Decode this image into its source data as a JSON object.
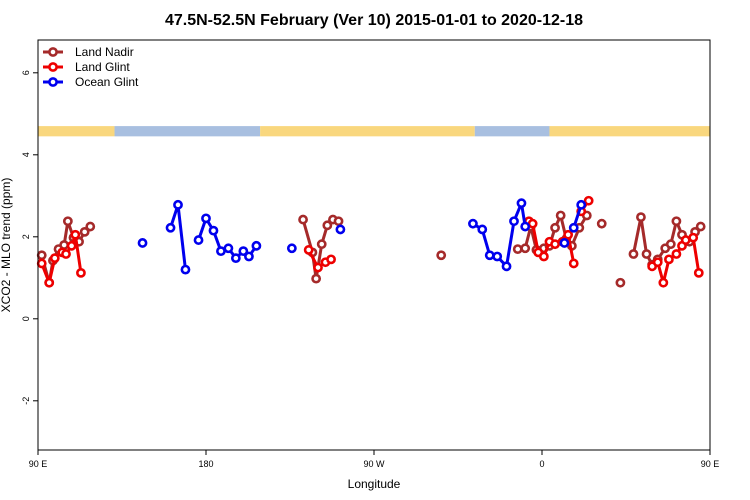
{
  "chart_data": {
    "type": "line",
    "title": "47.5N-52.5N February (Ver 10)   2015-01-01 to 2020-12-18",
    "xlabel": "Longitude",
    "ylabel": "XCO2 - MLO trend (ppm)",
    "xlim": [
      90,
      450
    ],
    "ylim": [
      -3.2,
      6.8
    ],
    "x_ticks": [
      {
        "value": 90,
        "label": "90 E"
      },
      {
        "value": 180,
        "label": "180"
      },
      {
        "value": 270,
        "label": "90 W"
      },
      {
        "value": 360,
        "label": "0"
      },
      {
        "value": 450,
        "label": "90 E"
      },
      {
        "value": 540,
        "label": "180"
      }
    ],
    "y_ticks": [
      {
        "value": -2,
        "label": "-2"
      },
      {
        "value": 0,
        "label": "0"
      },
      {
        "value": 2,
        "label": "2"
      },
      {
        "value": 4,
        "label": "4"
      },
      {
        "value": 6,
        "label": "6"
      }
    ],
    "legend_position": "top-left",
    "surface_band": {
      "y_range": [
        4.45,
        4.7
      ],
      "colors": {
        "land": "#f9d77e",
        "ocean": "#a8bfe0"
      },
      "segments": [
        {
          "from": 90,
          "to": 131,
          "type": "land"
        },
        {
          "from": 131,
          "to": 209,
          "type": "ocean"
        },
        {
          "from": 209,
          "to": 324,
          "type": "land"
        },
        {
          "from": 324,
          "to": 364,
          "type": "ocean"
        },
        {
          "from": 364,
          "to": 503,
          "type": "land"
        },
        {
          "from": 503,
          "to": 540,
          "type": "ocean"
        }
      ]
    },
    "series": [
      {
        "name": "Land Nadir",
        "color": "#a52a2a",
        "segments": [
          [
            [
              92,
              1.55
            ],
            [
              96,
              0.88
            ],
            [
              98,
              1.42
            ],
            [
              101,
              1.7
            ],
            [
              104,
              1.8
            ],
            [
              106,
              2.38
            ],
            [
              109,
              1.98
            ],
            [
              112,
              1.88
            ],
            [
              115,
              2.12
            ],
            [
              118,
              2.25
            ]
          ],
          [
            [
              232,
              2.42
            ],
            [
              237,
              1.62
            ],
            [
              239,
              0.98
            ],
            [
              242,
              1.82
            ],
            [
              245,
              2.28
            ],
            [
              248,
              2.42
            ],
            [
              251,
              2.38
            ]
          ],
          [
            [
              306,
              1.55
            ]
          ],
          [
            [
              347,
              1.7
            ],
            [
              351,
              1.72
            ],
            [
              354,
              2.25
            ],
            [
              357,
              1.68
            ],
            [
              361,
              1.72
            ],
            [
              364,
              1.78
            ],
            [
              367,
              2.22
            ],
            [
              370,
              2.52
            ],
            [
              373,
              1.95
            ],
            [
              376,
              1.78
            ],
            [
              380,
              2.22
            ],
            [
              384,
              2.52
            ]
          ],
          [
            [
              392,
              2.32
            ]
          ],
          [
            [
              402,
              0.88
            ]
          ],
          [
            [
              409,
              1.58
            ],
            [
              413,
              2.48
            ],
            [
              416,
              1.58
            ],
            [
              419,
              1.32
            ],
            [
              422,
              1.45
            ],
            [
              426,
              1.72
            ],
            [
              429,
              1.82
            ],
            [
              432,
              2.38
            ],
            [
              435,
              2.05
            ],
            [
              439,
              1.88
            ],
            [
              442,
              2.12
            ],
            [
              445,
              2.25
            ]
          ]
        ]
      },
      {
        "name": "Land Glint",
        "color": "#ee0000",
        "segments": [
          [
            [
              92,
              1.35
            ],
            [
              96,
              0.88
            ],
            [
              99,
              1.48
            ],
            [
              103,
              1.62
            ],
            [
              105,
              1.58
            ],
            [
              108,
              1.78
            ],
            [
              110,
              2.05
            ],
            [
              113,
              1.12
            ]
          ],
          [
            [
              235,
              1.68
            ],
            [
              240,
              1.25
            ],
            [
              244,
              1.38
            ],
            [
              247,
              1.45
            ]
          ],
          [
            [
              353,
              2.38
            ],
            [
              355,
              2.32
            ],
            [
              358,
              1.62
            ],
            [
              361,
              1.52
            ],
            [
              364,
              1.88
            ],
            [
              367,
              1.82
            ],
            [
              371,
              1.88
            ],
            [
              374,
              2.05
            ],
            [
              377,
              1.35
            ]
          ],
          [
            [
              381,
              2.62
            ],
            [
              385,
              2.88
            ]
          ],
          [
            [
              419,
              1.28
            ],
            [
              422,
              1.38
            ],
            [
              425,
              0.88
            ],
            [
              428,
              1.45
            ],
            [
              432,
              1.58
            ],
            [
              435,
              1.78
            ],
            [
              437,
              1.92
            ],
            [
              441,
              1.98
            ],
            [
              444,
              1.12
            ]
          ]
        ]
      },
      {
        "name": "Ocean Glint",
        "color": "#0000ee",
        "segments": [
          [
            [
              146,
              1.85
            ]
          ],
          [
            [
              161,
              2.22
            ],
            [
              165,
              2.78
            ],
            [
              169,
              1.2
            ]
          ],
          [
            [
              176,
              1.92
            ],
            [
              180,
              2.45
            ],
            [
              184,
              2.15
            ],
            [
              188,
              1.65
            ],
            [
              192,
              1.72
            ],
            [
              196,
              1.48
            ],
            [
              200,
              1.65
            ],
            [
              203,
              1.52
            ],
            [
              207,
              1.78
            ]
          ],
          [
            [
              226,
              1.72
            ]
          ],
          [
            [
              252,
              2.18
            ]
          ],
          [
            [
              323,
              2.32
            ],
            [
              328,
              2.18
            ],
            [
              332,
              1.55
            ],
            [
              336,
              1.52
            ],
            [
              341,
              1.28
            ],
            [
              345,
              2.38
            ],
            [
              349,
              2.82
            ],
            [
              351,
              2.25
            ]
          ],
          [
            [
              372,
              1.85
            ]
          ],
          [
            [
              377,
              2.22
            ],
            [
              381,
              2.78
            ]
          ]
        ]
      }
    ]
  }
}
